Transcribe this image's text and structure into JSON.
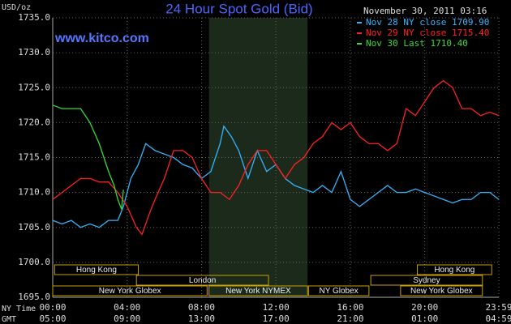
{
  "chart_data": {
    "type": "line",
    "title": "24 Hour Spot Gold (Bid)",
    "site": "www.kitco.com",
    "timestamp": "November 30, 2011 03:16",
    "y_unit": "USD/oz",
    "x_row_labels": [
      "NY Time",
      "GMT"
    ],
    "ylim": [
      1695,
      1735
    ],
    "yticks": [
      {
        "value": 1695,
        "label": "1695.0"
      },
      {
        "value": 1700,
        "label": "1700.0"
      },
      {
        "value": 1705,
        "label": "1705.0"
      },
      {
        "value": 1710,
        "label": "1710.0"
      },
      {
        "value": 1715,
        "label": "1715.0"
      },
      {
        "value": 1720,
        "label": "1720.0"
      },
      {
        "value": 1725,
        "label": "1725.0"
      },
      {
        "value": 1730,
        "label": "1730.0"
      },
      {
        "value": 1735,
        "label": "1735.0"
      }
    ],
    "xlim": [
      0,
      23.983
    ],
    "xticks": [
      {
        "value": 0,
        "label": "00:00"
      },
      {
        "value": 4,
        "label": "04:00"
      },
      {
        "value": 8,
        "label": "08:00"
      },
      {
        "value": 12,
        "label": "12:00"
      },
      {
        "value": 16,
        "label": "16:00"
      },
      {
        "value": 20,
        "label": "20:00"
      },
      {
        "value": 23.983,
        "label": "23:59"
      }
    ],
    "x2ticks": [
      {
        "value": 0,
        "label": "05:00"
      },
      {
        "value": 4,
        "label": "09:00"
      },
      {
        "value": 8,
        "label": "13:00"
      },
      {
        "value": 12,
        "label": "17:00"
      },
      {
        "value": 16,
        "label": "21:00"
      },
      {
        "value": 20,
        "label": "01:00"
      },
      {
        "value": 23.983,
        "label": "04:59"
      }
    ],
    "grid": true,
    "sessions": [
      [
        {
          "label": "Hong Kong",
          "start": 0.1,
          "end": 4.6
        },
        {
          "label": "Hong Kong",
          "start": 19.6,
          "end": 23.6
        }
      ],
      [
        {
          "label": "London",
          "start": 4.5,
          "end": 11.6
        },
        {
          "label": "Sydney",
          "start": 17.1,
          "end": 23.1
        }
      ],
      [
        {
          "label": "New York Globex",
          "start": 0,
          "end": 8.3
        },
        {
          "label": "New York NYMEX",
          "start": 8.4,
          "end": 13.7
        },
        {
          "label": "NY Globex",
          "start": 13.75,
          "end": 17
        },
        {
          "label": "New York Globex",
          "start": 18.7,
          "end": 23.1
        }
      ]
    ],
    "series": [
      {
        "name": "Nov 28 NY close 1709.90",
        "color": "#33b5ff",
        "x": [
          0,
          0.5,
          1,
          1.5,
          2,
          2.5,
          3,
          3.5,
          3.8,
          4.2,
          4.6,
          5,
          5.5,
          6,
          6.5,
          7,
          7.5,
          8,
          8.5,
          9,
          9.2,
          9.6,
          10,
          10.5,
          11,
          11.5,
          12,
          12.5,
          13,
          13.5,
          14,
          14.5,
          15,
          15.5,
          16,
          16.5,
          17,
          17.5,
          18,
          18.5,
          19,
          19.5,
          20,
          20.5,
          21,
          21.5,
          22,
          22.5,
          23,
          23.5,
          23.983
        ],
        "values": [
          1706,
          1705.5,
          1706,
          1705,
          1705.5,
          1705,
          1706,
          1706,
          1708,
          1712,
          1714,
          1717,
          1716,
          1715.5,
          1715,
          1714,
          1713.5,
          1712,
          1713,
          1717,
          1719.5,
          1718,
          1716,
          1712,
          1716,
          1713,
          1714,
          1712,
          1711,
          1710.5,
          1710,
          1711,
          1710,
          1713,
          1709,
          1708,
          1709,
          1710,
          1711,
          1710,
          1710,
          1710.5,
          1710,
          1709.5,
          1709,
          1708.5,
          1709,
          1709,
          1710,
          1710,
          1709
        ]
      },
      {
        "name": "Nov 29 NY close 1715.40",
        "color": "#ff2020",
        "x": [
          0,
          0.5,
          1,
          1.5,
          2,
          2.5,
          3,
          3.5,
          4,
          4.5,
          4.8,
          5.2,
          5.5,
          6,
          6.5,
          7,
          7.5,
          8,
          8.5,
          9,
          9.5,
          10,
          10.5,
          11,
          11.5,
          12,
          12.5,
          13,
          13.5,
          14,
          14.5,
          15,
          15.5,
          16,
          16.5,
          17,
          17.5,
          18,
          18.5,
          19,
          19.5,
          20,
          20.5,
          21,
          21.5,
          22,
          22.5,
          23,
          23.5,
          23.983
        ],
        "values": [
          1709,
          1710,
          1711,
          1712,
          1712,
          1711.5,
          1711.5,
          1710,
          1708,
          1705,
          1704,
          1707,
          1709,
          1712,
          1716,
          1716,
          1715,
          1712,
          1710,
          1710,
          1709,
          1711,
          1714,
          1716,
          1716,
          1714,
          1712,
          1714,
          1715,
          1717,
          1718,
          1720,
          1719,
          1720,
          1718,
          1717,
          1717,
          1716,
          1717,
          1722,
          1721,
          1723,
          1725,
          1726,
          1725,
          1722,
          1722,
          1721,
          1721.5,
          1721
        ]
      },
      {
        "name": "Nov 30 Last 1710.40",
        "color": "#33dd33",
        "x": [
          0,
          0.5,
          1,
          1.5,
          2,
          2.5,
          3,
          3.3,
          3.5,
          3.7,
          3.8
        ],
        "values": [
          1722.5,
          1722,
          1722,
          1722,
          1720,
          1717,
          1713,
          1711,
          1709,
          1707.6,
          1710.4
        ]
      }
    ]
  }
}
